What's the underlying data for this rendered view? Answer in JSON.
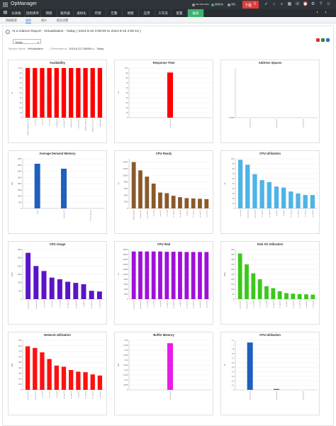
{
  "header": {
    "app_title": "OpManager",
    "status_items": [
      {
        "text": "600-600-0000",
        "color": "#9aa0a6"
      },
      {
        "text": "授权状态",
        "color": "#3cb371"
      },
      {
        "text": "离线",
        "color": "#9aa0a6"
      }
    ],
    "download_label": "下载",
    "icons": [
      "rocket-icon",
      "bell-icon",
      "search-icon",
      "grid-icon",
      "phone-icon",
      "alarm-icon",
      "settings-icon",
      "help-icon",
      "user-icon"
    ]
  },
  "menu": {
    "items": [
      "仪表板",
      "团组清单",
      "网络",
      "服务器",
      "虚拟化",
      "存储",
      "告警",
      "地图",
      "应用",
      "工作流",
      "配置",
      "报表"
    ],
    "active_index": 11
  },
  "submenu": {
    "items": [
      "网络报表",
      "虚拟",
      "统计",
      "报告设置"
    ],
    "active_index": 1
  },
  "report": {
    "title": "At a Glance Report - Virtualization - Today ( 2024-8-22 0:00:00 to 2024-8-22 2:00:15 )",
    "period_select": "Today",
    "meta": {
      "monitor_name_key": "Monitor Name :",
      "monitor_name_val": "Virtualization",
      "generated_key": "| Generated at :",
      "generated_val": "2024-8-22 2:00:21",
      "period_key": "| Period :",
      "period_val": "Today"
    }
  },
  "chart_data": [
    {
      "type": "bar",
      "title": "Availability",
      "ylabel": "%",
      "color": "#ff0000",
      "ylim": [
        0,
        100
      ],
      "yticks": [
        0,
        10,
        20,
        30,
        40,
        50,
        60,
        70,
        80,
        90,
        100
      ],
      "categories": [
        "Cluster-Sizing-Demo_B",
        "esx-vm06",
        "esx-vm07",
        "esx-vm08",
        "esxi-host-01",
        "esxi-host-02",
        "esxi-host-03",
        "vcenter-demo",
        "Windows-VM_01",
        "Windows-Host_01",
        "Datacenter"
      ],
      "values": [
        100,
        100,
        100,
        100,
        100,
        100,
        100,
        100,
        100,
        100,
        100
      ]
    },
    {
      "type": "bar",
      "title": "Response Time",
      "ylabel": "ms",
      "color": "#ff0000",
      "ylim": [
        0,
        100
      ],
      "yticks": [
        0,
        10,
        20,
        30,
        40,
        50,
        60,
        70,
        80,
        90,
        100
      ],
      "categories": [
        "esxi-host-01"
      ],
      "values": [
        91
      ]
    },
    {
      "type": "bar",
      "title": "Address Spaces",
      "ylabel": "",
      "color": "#3366cc",
      "ylim": [
        0,
        1
      ],
      "yticks": [
        0.0005
      ],
      "categories": [
        "esxi-host-01",
        "esxi-host-02",
        "esxi-host-03"
      ],
      "values": [
        0,
        0,
        0
      ]
    },
    {
      "type": "bar",
      "title": "Average Demand Memory",
      "ylabel": "GB",
      "color": "#1f5fbf",
      "ylim": [
        0,
        4000
      ],
      "yticks": [
        0,
        500,
        1000,
        1500,
        2000,
        2500,
        3000,
        3500,
        4000
      ],
      "categories": [
        "Demo",
        "esxi-host-01",
        "TTY_W_VM_123"
      ],
      "values": [
        3600,
        3200,
        0
      ]
    },
    {
      "type": "bar",
      "title": "CPU Ready",
      "ylabel": "ms",
      "color": "#8a5a2b",
      "ylim": [
        0,
        15000
      ],
      "yticks": [
        0,
        2000,
        4000,
        6000,
        8000,
        10000,
        12000,
        14000
      ],
      "categories": [
        "VM-01-SIZING",
        "esxi-host-01",
        "esxi-host-02",
        "esx-vm06",
        "esx-vm07",
        "esx-vm08",
        "vm-app-01",
        "vm-app-02",
        "vm-db-01",
        "vm-web-01",
        "vm-web-02",
        "vm-test-01"
      ],
      "values": [
        14000,
        11500,
        9600,
        7500,
        4800,
        4600,
        3800,
        3400,
        3100,
        3000,
        2900,
        2800
      ]
    },
    {
      "type": "bar",
      "title": "CPU Utilization",
      "ylabel": "%",
      "color": "#4fb3e8",
      "ylim": [
        0,
        100
      ],
      "yticks": [
        0,
        10,
        20,
        30,
        40,
        50,
        60,
        70,
        80,
        90,
        100
      ],
      "categories": [
        "esx-vm06",
        "esxi-host-01",
        "esxi-host-02",
        "vm-app-01",
        "vm-app-02",
        "vm-db-01",
        "vm-db-02",
        "vm-web-01",
        "vm-web-02",
        "vm-test-01",
        "vm-test-02"
      ],
      "values": [
        98,
        88,
        69,
        57,
        53,
        44,
        42,
        34,
        30,
        27,
        27
      ]
    },
    {
      "type": "bar",
      "title": "CPU Usage",
      "ylabel": "MHz",
      "color": "#5a14c8",
      "ylim": [
        0,
        3000
      ],
      "yticks": [
        0,
        500,
        1000,
        1500,
        2000,
        2500,
        3000
      ],
      "categories": [
        "esxi-host-01",
        "esxi-host-02",
        "esx-vm06",
        "esx-vm07",
        "esx-vm08",
        "vm-app-01",
        "vm-app-02",
        "vm-db-01",
        "vm-web-01",
        "vm-test-01"
      ],
      "values": [
        2800,
        2000,
        1700,
        1300,
        1200,
        1050,
        980,
        900,
        500,
        460
      ]
    },
    {
      "type": "bar",
      "title": "CPU Wait",
      "ylabel": "ms",
      "color": "#a010d8",
      "ylim": [
        0,
        20000
      ],
      "yticks": [
        0,
        2000,
        4000,
        6000,
        8000,
        10000,
        12000,
        14000,
        16000,
        18000,
        20000
      ],
      "categories": [
        "esxi-host-01",
        "esxi-host-02",
        "esx-vm06",
        "esx-vm07",
        "esx-vm08",
        "vm-app-01",
        "vm-app-02",
        "vm-db-01",
        "vm-web-01",
        "vm-web-02",
        "vm-test-01",
        "vm-test-02"
      ],
      "values": [
        19200,
        19200,
        19200,
        19200,
        19200,
        19100,
        19100,
        19100,
        19000,
        19000,
        19000,
        19000
      ]
    },
    {
      "type": "bar",
      "title": "Disk I/O Utilization",
      "ylabel": "KB/s",
      "color": "#3cc81c",
      "ylim": [
        0,
        500
      ],
      "yticks": [
        0,
        50,
        100,
        150,
        200,
        250,
        300,
        350,
        400,
        450,
        500
      ],
      "categories": [
        "esxi-host-01",
        "esxi-host-02",
        "esx-vm06",
        "esx-vm07",
        "esx-vm08",
        "vm-app-01",
        "vm-app-02",
        "vm-db-01",
        "vm-web-01",
        "vm-web-02",
        "vm-test-01",
        "vm-test-02"
      ],
      "values": [
        460,
        350,
        260,
        200,
        130,
        110,
        80,
        60,
        55,
        50,
        48,
        45
      ]
    },
    {
      "type": "bar",
      "title": "Network Utilization",
      "ylabel": "KB/s",
      "color": "#ff1010",
      "ylim": [
        0,
        900
      ],
      "yticks": [
        0,
        100,
        200,
        300,
        400,
        500,
        600,
        700,
        800,
        900
      ],
      "categories": [
        "esxi-host-01",
        "esxi-host-02",
        "esx-vm06",
        "esx-vm07",
        "esx-vm08",
        "vm-app-01",
        "vm-app-02",
        "vm-db-01",
        "vm-web-01",
        "vm-web-02",
        "vm-test-01"
      ],
      "values": [
        790,
        760,
        680,
        560,
        440,
        420,
        360,
        330,
        320,
        280,
        260
      ]
    },
    {
      "type": "bar",
      "title": "Buffer Memory",
      "ylabel": "GB",
      "color": "#e81ce8",
      "ylim": [
        0,
        0.05
      ],
      "yticks": [
        0,
        0.005,
        0.01,
        0.015,
        0.02,
        0.025,
        0.03,
        0.035,
        0.04,
        0.045,
        0.05
      ],
      "categories": [
        "esxi-host-01"
      ],
      "values": [
        0.047
      ]
    },
    {
      "type": "bar",
      "title": "CPU Utilization",
      "ylabel": "%",
      "color": "#1f5fbf",
      "ylim": [
        0,
        1.1
      ],
      "yticks": [
        0,
        0.1,
        0.2,
        0.3,
        0.4,
        0.5,
        0.6,
        0.7,
        0.8,
        0.9,
        1.0,
        1.1
      ],
      "categories": [
        "esxi-host-01",
        "esxi-host-02",
        "esxi-host-03"
      ],
      "values": [
        1.05,
        0.02,
        0
      ]
    }
  ]
}
